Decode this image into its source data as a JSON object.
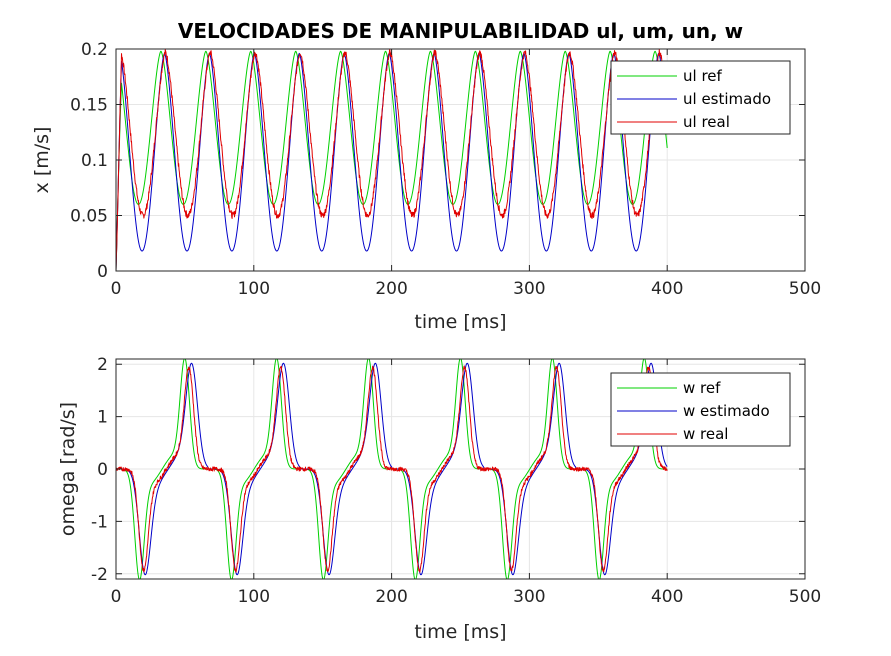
{
  "chart_data": [
    {
      "type": "line",
      "title": "VELOCIDADES DE MANIPULABILIDAD ul, um, un, w",
      "xlabel": "time [ms]",
      "ylabel": "x [m/s]",
      "xlim": [
        0,
        500
      ],
      "ylim": [
        0,
        0.2
      ],
      "xticks": [
        0,
        100,
        200,
        300,
        400,
        500
      ],
      "xtick_labels": [
        "0",
        "100",
        "200",
        "300",
        "400",
        "500"
      ],
      "yticks": [
        0,
        0.05,
        0.1,
        0.15,
        0.2
      ],
      "ytick_labels": [
        "0",
        "0.05",
        "0.1",
        "0.15",
        "0.2"
      ],
      "grid": true,
      "legend_position": "top-right",
      "series": [
        {
          "name": "ul ref",
          "color": "#00d000",
          "kind": "ref",
          "period": 32.6,
          "max": 0.198,
          "min": 0.06,
          "peak_phase": 0.0,
          "x_end": 400
        },
        {
          "name": "ul estimado",
          "color": "#0000c8",
          "kind": "est",
          "period": 32.6,
          "max": 0.196,
          "min": 0.018,
          "peak_phase": 0.08,
          "x_end": 400
        },
        {
          "name": "ul real",
          "color": "#e00000",
          "kind": "real",
          "period": 32.6,
          "max": 0.197,
          "min": 0.05,
          "peak_phase": 0.1,
          "x_end": 400
        }
      ]
    },
    {
      "type": "line",
      "title": "",
      "xlabel": "time [ms]",
      "ylabel": "omega [rad/s]",
      "xlim": [
        0,
        500
      ],
      "ylim": [
        -2.1,
        2.1
      ],
      "xticks": [
        0,
        100,
        200,
        300,
        400,
        500
      ],
      "xtick_labels": [
        "0",
        "100",
        "200",
        "300",
        "400",
        "500"
      ],
      "yticks": [
        -2,
        -1,
        0,
        1,
        2
      ],
      "ytick_labels": [
        "-2",
        "-1",
        "0",
        "1",
        "2"
      ],
      "grid": true,
      "legend_position": "top-right",
      "series": [
        {
          "name": "w ref",
          "color": "#00d000",
          "kind": "ref",
          "period": 66.7,
          "peak": 2.03,
          "neg_peak_at": 17,
          "pos_peak_at": 50,
          "x_end": 400
        },
        {
          "name": "w estimado",
          "color": "#0000c8",
          "kind": "est",
          "period": 66.7,
          "peak": 1.93,
          "neg_peak_at": 21,
          "pos_peak_at": 55,
          "x_end": 400
        },
        {
          "name": "w real",
          "color": "#e00000",
          "kind": "real",
          "period": 66.7,
          "peak": 1.85,
          "neg_peak_at": 20,
          "pos_peak_at": 53,
          "x_end": 400
        }
      ]
    }
  ]
}
